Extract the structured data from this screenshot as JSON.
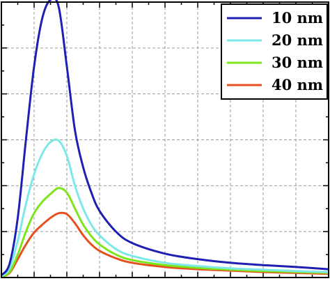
{
  "chart_data": {
    "type": "line",
    "title": "",
    "xlabel": "",
    "ylabel": "",
    "xlim": [
      0,
      10
    ],
    "ylim": [
      0,
      6
    ],
    "grid": true,
    "legend_position": "top-right",
    "series": [
      {
        "name": "10 nm",
        "color": "#1f1fb4",
        "x": [
          0,
          0.25,
          0.5,
          0.75,
          1.0,
          1.25,
          1.5,
          1.75,
          2.0,
          2.25,
          2.5,
          2.75,
          3.0,
          3.5,
          4.0,
          5.0,
          6.0,
          7.0,
          8.0,
          9.0,
          10.0
        ],
        "y": [
          0.05,
          0.3,
          1.3,
          3.0,
          4.6,
          5.65,
          6.05,
          5.9,
          4.6,
          3.2,
          2.4,
          1.85,
          1.45,
          1.0,
          0.75,
          0.52,
          0.4,
          0.32,
          0.27,
          0.23,
          0.18
        ]
      },
      {
        "name": "20 nm",
        "color": "#7ee8e8",
        "x": [
          0,
          0.25,
          0.5,
          0.75,
          1.0,
          1.25,
          1.5,
          1.75,
          2.0,
          2.25,
          2.5,
          2.75,
          3.0,
          3.5,
          4.0,
          5.0,
          6.0,
          7.0,
          8.0,
          9.0,
          10.0
        ],
        "y": [
          0.03,
          0.2,
          0.8,
          1.6,
          2.25,
          2.7,
          2.95,
          2.98,
          2.65,
          2.0,
          1.5,
          1.15,
          0.92,
          0.62,
          0.47,
          0.32,
          0.25,
          0.2,
          0.17,
          0.14,
          0.12
        ]
      },
      {
        "name": "30 nm",
        "color": "#7ce51c",
        "x": [
          0,
          0.25,
          0.5,
          0.75,
          1.0,
          1.25,
          1.5,
          1.75,
          2.0,
          2.25,
          2.5,
          2.75,
          3.0,
          3.5,
          4.0,
          5.0,
          6.0,
          7.0,
          8.0,
          9.0,
          10.0
        ],
        "y": [
          0.02,
          0.12,
          0.5,
          1.0,
          1.4,
          1.65,
          1.82,
          1.95,
          1.85,
          1.5,
          1.15,
          0.9,
          0.72,
          0.5,
          0.38,
          0.27,
          0.21,
          0.17,
          0.14,
          0.12,
          0.1
        ]
      },
      {
        "name": "40 nm",
        "color": "#e5501e",
        "x": [
          0,
          0.25,
          0.5,
          0.75,
          1.0,
          1.25,
          1.5,
          1.75,
          2.0,
          2.25,
          2.5,
          2.75,
          3.0,
          3.5,
          4.0,
          5.0,
          6.0,
          7.0,
          8.0,
          9.0,
          10.0
        ],
        "y": [
          0.02,
          0.1,
          0.4,
          0.72,
          0.98,
          1.15,
          1.3,
          1.4,
          1.38,
          1.18,
          0.92,
          0.72,
          0.58,
          0.42,
          0.32,
          0.23,
          0.18,
          0.15,
          0.12,
          0.1,
          0.08
        ]
      }
    ]
  }
}
